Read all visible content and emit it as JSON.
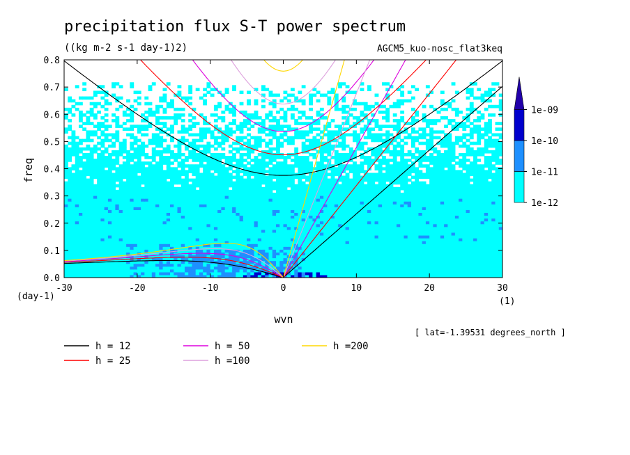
{
  "chart_data": {
    "type": "heatmap",
    "title": "precipitation flux S-T power spectrum",
    "subtitle": "((kg m-2 s-1 day-1)2)",
    "run_label": "AGCM5_kuo-nosc_flat3keq",
    "xlabel": "wvn",
    "ylabel": "freq",
    "x_unit": "(1)",
    "y_unit": "(day-1)",
    "location_note": "[ lat=-1.39531 degrees_north ]",
    "xlim": [
      -30,
      30
    ],
    "ylim": [
      0,
      0.8
    ],
    "x_ticks": [
      -30,
      -20,
      -10,
      0,
      10,
      20,
      30
    ],
    "x_tick_labels": [
      "-30",
      "-20",
      "-10",
      "0",
      "10",
      "20",
      "30"
    ],
    "y_ticks": [
      0,
      0.1,
      0.2,
      0.3,
      0.4,
      0.5,
      0.6,
      0.7,
      0.8
    ],
    "y_tick_labels": [
      "0.0",
      "0.1",
      "0.2",
      "0.3",
      "0.4",
      "0.5",
      "0.6",
      "0.7",
      "0.8"
    ],
    "colorbar": {
      "levels": [
        1e-12,
        1e-11,
        1e-10,
        1e-09
      ],
      "labels": [
        "1e-12",
        "1e-11",
        "1e-10",
        "1e-09"
      ],
      "colors": [
        "#00ffff",
        "#1e90ff",
        "#0000cd",
        "#2200aa"
      ]
    },
    "dispersion_curves": [
      {
        "name": "h = 12",
        "h": 12,
        "color": "#000000"
      },
      {
        "name": "h = 25",
        "h": 25,
        "color": "#ff0000"
      },
      {
        "name": "h = 50",
        "h": 50,
        "color": "#dd00dd"
      },
      {
        "name": "h =100",
        "h": 100,
        "color": "#dda0dd"
      },
      {
        "name": "h =200",
        "h": 200,
        "color": "#ffd700"
      }
    ]
  }
}
